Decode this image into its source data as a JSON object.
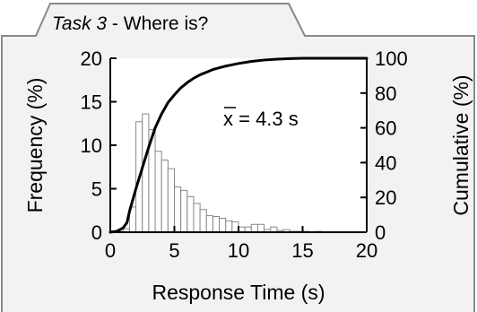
{
  "panel": {
    "task_label": "Task 3",
    "task_title": " - Where is?",
    "frame_color": "#888888",
    "panel_fill": "#f2f2f2"
  },
  "chart_data": {
    "type": "bar",
    "xlabel": "Response Time (s)",
    "ylabel": "Frequency (%)",
    "y2label": "Cumulative (%)",
    "xlim": [
      0,
      20
    ],
    "ylim": [
      0,
      20
    ],
    "y2lim": [
      0,
      100
    ],
    "xticks": [
      0,
      5,
      10,
      15,
      20
    ],
    "yticks": [
      0,
      5,
      10,
      15,
      20
    ],
    "y2ticks": [
      0,
      20,
      40,
      60,
      80,
      100
    ],
    "bin_width": 0.5,
    "bins": [
      {
        "x0": 0.0,
        "value": 0.0
      },
      {
        "x0": 0.5,
        "value": 0.1
      },
      {
        "x0": 1.0,
        "value": 0.4
      },
      {
        "x0": 1.5,
        "value": 2.9
      },
      {
        "x0": 2.0,
        "value": 12.7
      },
      {
        "x0": 2.5,
        "value": 13.6
      },
      {
        "x0": 3.0,
        "value": 11.8
      },
      {
        "x0": 3.5,
        "value": 9.3
      },
      {
        "x0": 4.0,
        "value": 8.3
      },
      {
        "x0": 4.5,
        "value": 7.3
      },
      {
        "x0": 5.0,
        "value": 5.2
      },
      {
        "x0": 5.5,
        "value": 4.8
      },
      {
        "x0": 6.0,
        "value": 4.1
      },
      {
        "x0": 6.5,
        "value": 3.3
      },
      {
        "x0": 7.0,
        "value": 2.6
      },
      {
        "x0": 7.5,
        "value": 1.9
      },
      {
        "x0": 8.0,
        "value": 1.8
      },
      {
        "x0": 8.5,
        "value": 1.6
      },
      {
        "x0": 9.0,
        "value": 1.3
      },
      {
        "x0": 9.5,
        "value": 1.2
      },
      {
        "x0": 10.0,
        "value": 0.6
      },
      {
        "x0": 10.5,
        "value": 0.6
      },
      {
        "x0": 11.0,
        "value": 0.9
      },
      {
        "x0": 11.5,
        "value": 0.9
      },
      {
        "x0": 12.0,
        "value": 0.3
      },
      {
        "x0": 12.5,
        "value": 0.6
      },
      {
        "x0": 13.0,
        "value": 0.2
      },
      {
        "x0": 13.5,
        "value": 0.3
      },
      {
        "x0": 14.0,
        "value": 0.1
      },
      {
        "x0": 14.5,
        "value": 0.1
      },
      {
        "x0": 15.0,
        "value": 0.1
      },
      {
        "x0": 15.5,
        "value": 0.0
      },
      {
        "x0": 16.0,
        "value": 0.1
      }
    ],
    "cumulative": {
      "x": [
        0,
        0.5,
        1.0,
        1.3,
        1.5,
        2.0,
        2.5,
        3.0,
        3.5,
        4.0,
        4.5,
        5.0,
        5.5,
        6.0,
        6.5,
        7.0,
        8.0,
        9.0,
        10.0,
        11.0,
        12.0,
        13.0,
        14.0,
        15.0,
        16.0,
        17.0,
        18.0,
        19.0,
        20.0
      ],
      "y": [
        0,
        0.5,
        2.5,
        5.5,
        12.0,
        25.0,
        37.0,
        49.0,
        60.0,
        68.0,
        74.5,
        79.0,
        83.0,
        86.0,
        88.5,
        90.5,
        93.5,
        95.5,
        97.0,
        98.2,
        99.0,
        99.5,
        99.8,
        100,
        100,
        100,
        100,
        100,
        100
      ]
    },
    "annotation": {
      "text": "x = 4.3 s",
      "mean": 4.3
    },
    "bar_fill": "#ffffff",
    "bar_stroke": "#888888",
    "line_color": "#000000"
  }
}
